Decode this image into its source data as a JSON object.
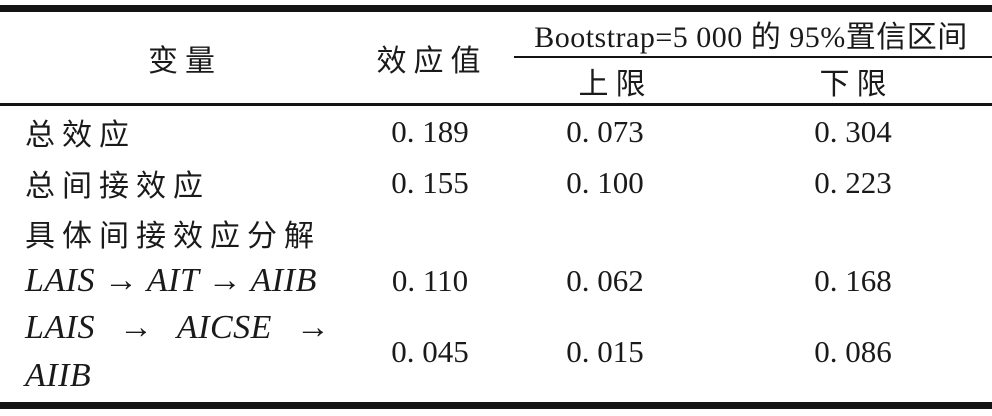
{
  "table": {
    "header": {
      "variable": "变量",
      "effect": "效应值",
      "ci_title": "Bootstrap=5 000 的 95%置信区间",
      "upper": "上限",
      "lower": "下限"
    },
    "rows": [
      {
        "label": "总效应",
        "effect": "0. 189",
        "upper": "0. 073",
        "lower": "0. 304"
      },
      {
        "label": "总间接效应",
        "effect": "0. 155",
        "upper": "0. 100",
        "lower": "0. 223"
      },
      {
        "label": "具体间接效应分解",
        "effect": "",
        "upper": "",
        "lower": ""
      },
      {
        "label": "LAIS → AIT → AIIB",
        "effect": "0. 110",
        "upper": "0. 062",
        "lower": "0. 168"
      },
      {
        "label_line1": "LAIS → AICSE →",
        "label_line2": "AIIB",
        "effect": "0. 045",
        "upper": "0. 015",
        "lower": "0. 086"
      }
    ],
    "colors": {
      "text": "#1a1a1a",
      "rule": "#141414",
      "background": "#ffffff"
    }
  }
}
